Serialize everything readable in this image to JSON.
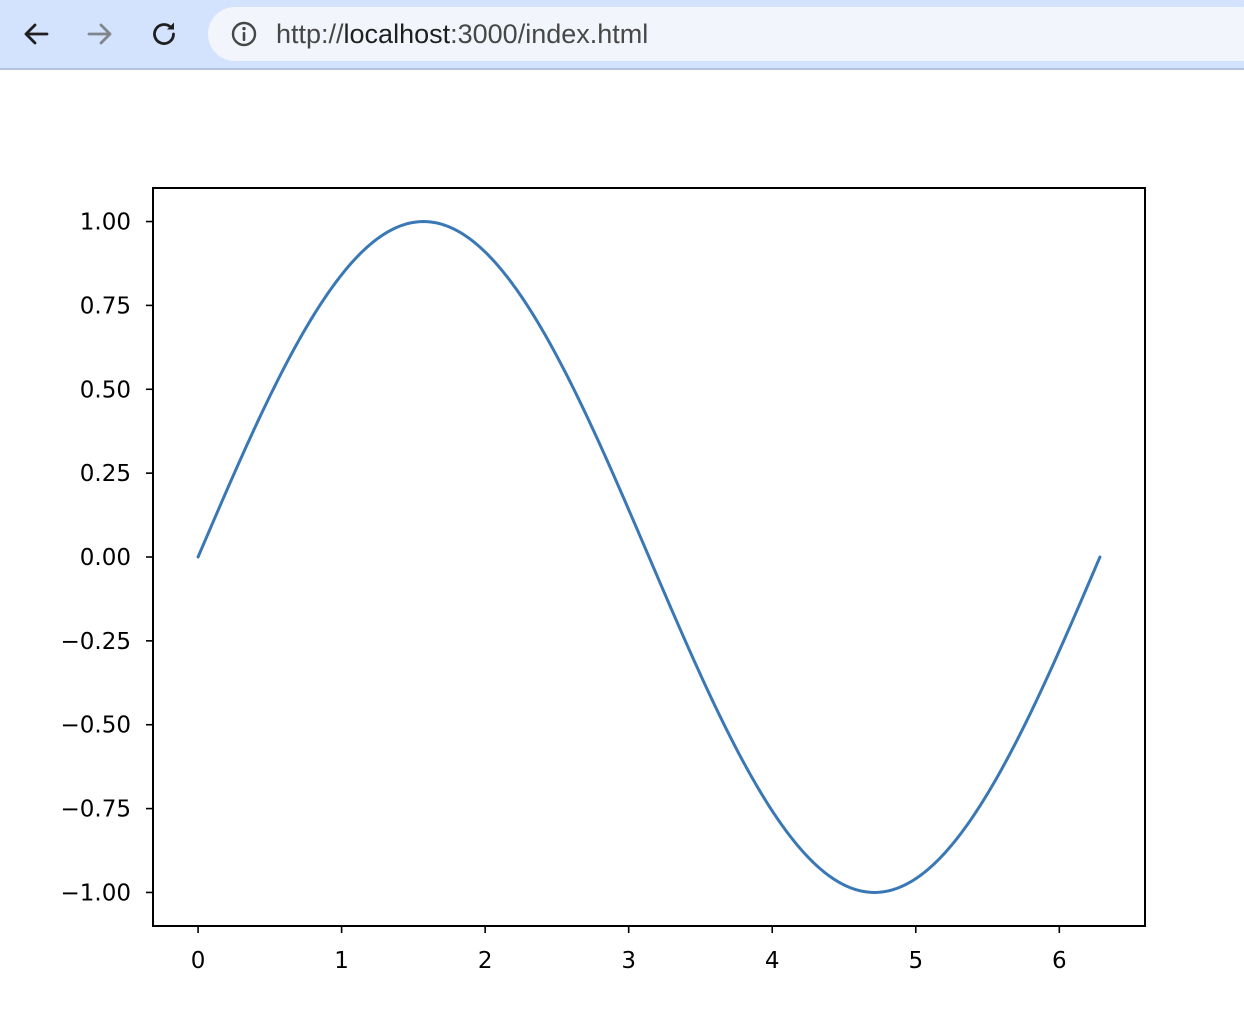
{
  "browser": {
    "url_scheme": "http://",
    "url_host": "localhost",
    "url_rest": ":3000/index.html",
    "icons": {
      "back": "arrow-left-icon",
      "forward": "arrow-right-icon",
      "reload": "reload-icon",
      "site_info": "info-circle-icon"
    },
    "colors": {
      "toolbar_bg": "#d3e3fd",
      "omnibox_bg": "#f2f6fc"
    }
  },
  "chart_data": {
    "type": "line",
    "title": "",
    "xlabel": "",
    "ylabel": "",
    "function": "sin(x)",
    "x_range": [
      0,
      6.283
    ],
    "xlim": [
      -0.314,
      6.597
    ],
    "ylim": [
      -1.1,
      1.1
    ],
    "grid": false,
    "line_color": "#3a78b5",
    "x_ticks": [
      {
        "value": 0,
        "label": "0"
      },
      {
        "value": 1,
        "label": "1"
      },
      {
        "value": 2,
        "label": "2"
      },
      {
        "value": 3,
        "label": "3"
      },
      {
        "value": 4,
        "label": "4"
      },
      {
        "value": 5,
        "label": "5"
      },
      {
        "value": 6,
        "label": "6"
      }
    ],
    "y_ticks": [
      {
        "value": 1.0,
        "label": "1.00"
      },
      {
        "value": 0.75,
        "label": "0.75"
      },
      {
        "value": 0.5,
        "label": "0.50"
      },
      {
        "value": 0.25,
        "label": "0.25"
      },
      {
        "value": 0.0,
        "label": "0.00"
      },
      {
        "value": -0.25,
        "label": "−0.25"
      },
      {
        "value": -0.5,
        "label": "−0.50"
      },
      {
        "value": -0.75,
        "label": "−0.75"
      },
      {
        "value": -1.0,
        "label": "−1.00"
      }
    ],
    "series": [
      {
        "x": [
          0,
          0.2618,
          0.5236,
          0.7854,
          1.0472,
          1.309,
          1.5708,
          1.8326,
          2.0944,
          2.3562,
          2.618,
          2.8798,
          3.1416,
          3.4034,
          3.6652,
          3.927,
          4.1888,
          4.4506,
          4.7124,
          4.9742,
          5.236,
          5.4978,
          5.7596,
          6.0214,
          6.2832
        ],
        "y": [
          0,
          0.2588,
          0.5,
          0.7071,
          0.866,
          0.9659,
          1.0,
          0.9659,
          0.866,
          0.7071,
          0.5,
          0.2588,
          0,
          -0.2588,
          -0.5,
          -0.7071,
          -0.866,
          -0.9659,
          -1.0,
          -0.9659,
          -0.866,
          -0.7071,
          -0.5,
          -0.2588,
          0
        ]
      }
    ]
  }
}
